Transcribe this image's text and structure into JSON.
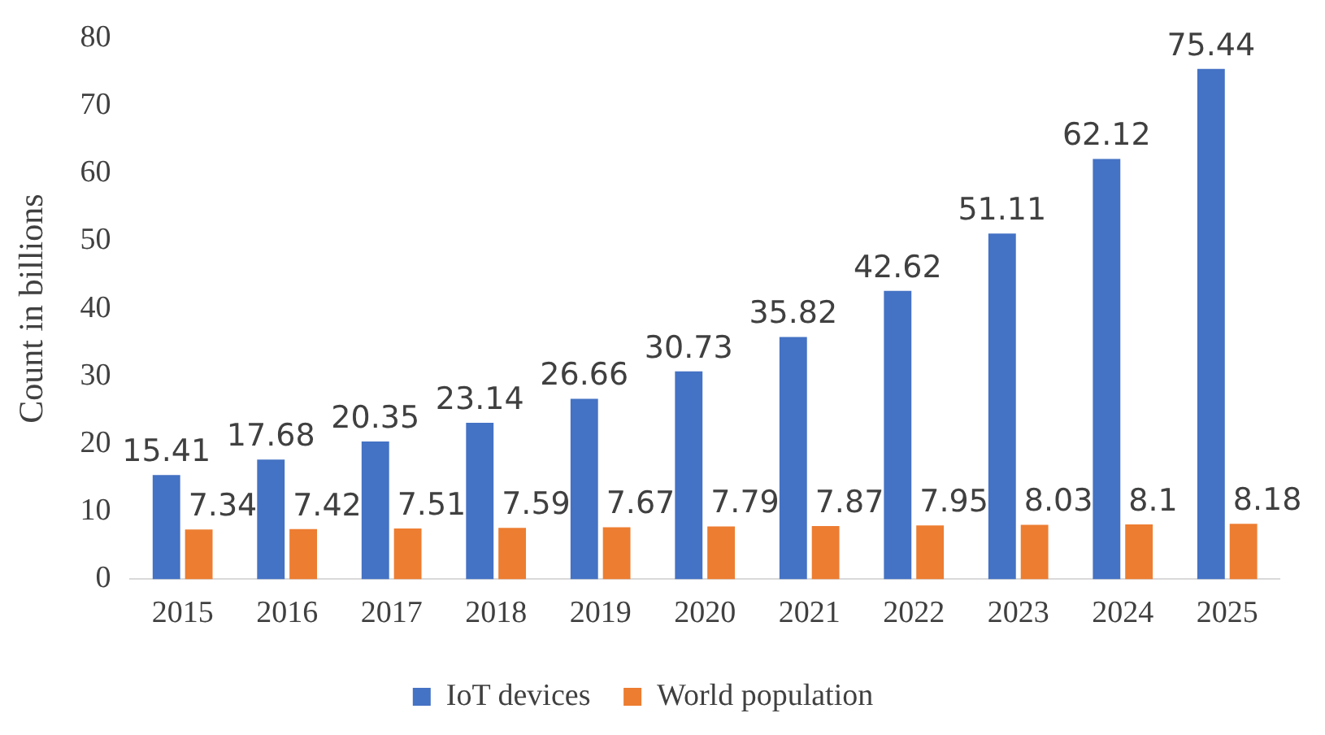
{
  "chart_data": {
    "type": "bar",
    "ylabel": "Count in billions",
    "categories": [
      "2015",
      "2016",
      "2017",
      "2018",
      "2019",
      "2020",
      "2021",
      "2022",
      "2023",
      "2024",
      "2025"
    ],
    "series": [
      {
        "name": "IoT devices",
        "color": "#4472c4",
        "values": [
          15.41,
          17.68,
          20.35,
          23.14,
          26.66,
          30.73,
          35.82,
          42.62,
          51.11,
          62.12,
          75.44
        ]
      },
      {
        "name": "World population",
        "color": "#ed7d31",
        "values": [
          7.34,
          7.42,
          7.51,
          7.59,
          7.67,
          7.79,
          7.87,
          7.95,
          8.03,
          8.1,
          8.18
        ]
      }
    ],
    "ylim": [
      0,
      80
    ],
    "yticks": [
      0,
      10,
      20,
      30,
      40,
      50,
      60,
      70,
      80
    ],
    "grid": false,
    "legend": "bottom",
    "data_labels": true
  }
}
